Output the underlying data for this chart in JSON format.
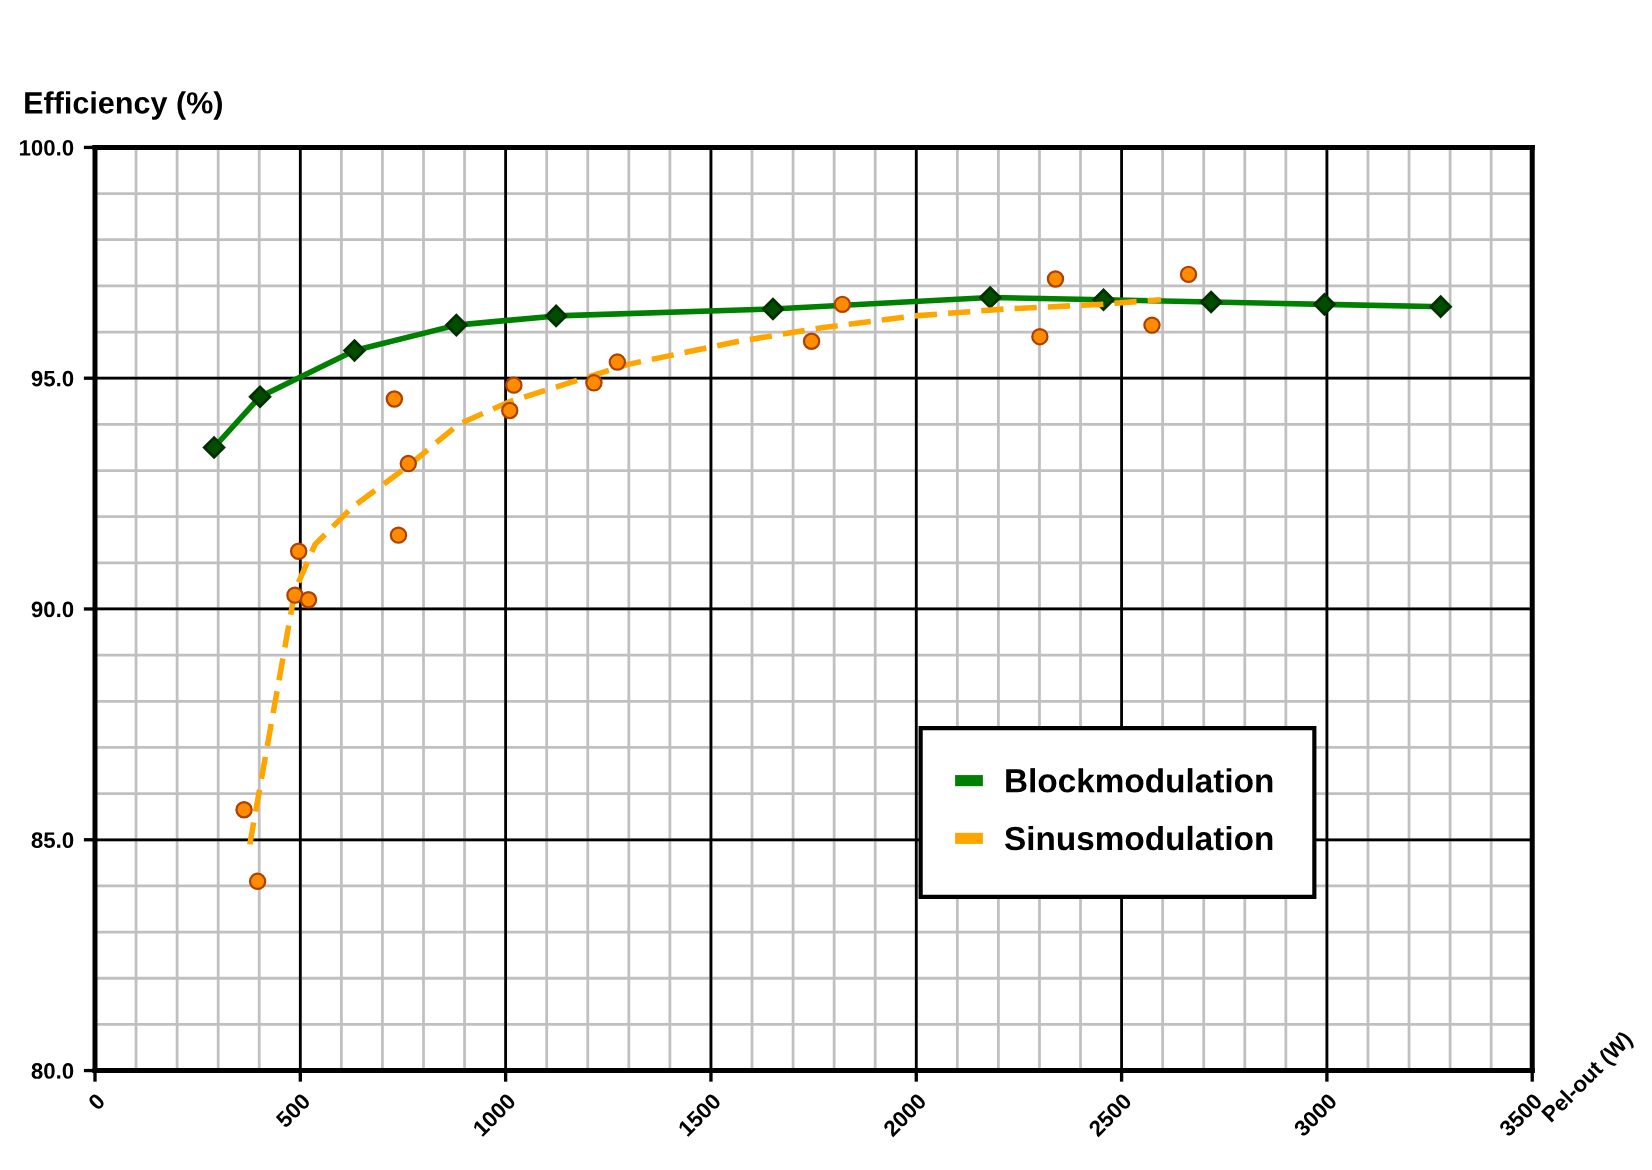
{
  "chart_data": {
    "type": "line",
    "ylabel": "Efficiency (%)",
    "xlabel": "Pel-out (W)",
    "xlim": [
      0,
      3500
    ],
    "xticks": [
      0,
      500,
      1000,
      1500,
      2000,
      2500,
      3000,
      3500
    ],
    "ylim": [
      80,
      100
    ],
    "yticks": [
      {
        "value": 80,
        "label": "80.0"
      },
      {
        "value": 85,
        "label": "85.0"
      },
      {
        "value": 90,
        "label": "90.0"
      },
      {
        "value": 95,
        "label": "95.0"
      },
      {
        "value": 100,
        "label": "100.0"
      }
    ],
    "grid": true,
    "legend": "lower right",
    "series": [
      {
        "name": "Blockmodulation",
        "color": "#008000",
        "marker": "diamond",
        "line_style": "solid",
        "x": [
          290,
          402,
          632,
          880,
          1123,
          1651,
          2180,
          2456,
          2718,
          2994,
          3277
        ],
        "values": [
          93.5,
          94.6,
          95.6,
          96.15,
          96.35,
          96.5,
          96.75,
          96.7,
          96.65,
          96.6,
          96.55
        ]
      },
      {
        "type": "scatter",
        "color": "#ff8c00",
        "marker": "circle",
        "x": [
          363,
          396,
          487,
          496,
          520,
          729,
          739,
          763,
          1010,
          1020,
          1215,
          1272,
          1745,
          1820,
          2301,
          2339,
          2574,
          2663
        ],
        "values": [
          85.65,
          84.1,
          90.3,
          91.25,
          90.2,
          94.55,
          91.6,
          93.15,
          94.3,
          94.85,
          94.9,
          95.35,
          95.8,
          96.6,
          95.9,
          97.15,
          96.15,
          97.25
        ]
      },
      {
        "name": "Sinusmodulation",
        "color": "#ffa500",
        "marker": "none",
        "line_style": "dashed",
        "x": [
          377,
          445,
          487,
          536,
          626,
          763,
          885,
          1012,
          1298,
          1568,
          1774,
          1996,
          2218,
          2450,
          2596
        ],
        "values": [
          84.9,
          88.3,
          90.4,
          91.4,
          92.2,
          93.1,
          94.0,
          94.5,
          95.3,
          95.8,
          96.1,
          96.35,
          96.5,
          96.6,
          96.7
        ]
      }
    ]
  }
}
